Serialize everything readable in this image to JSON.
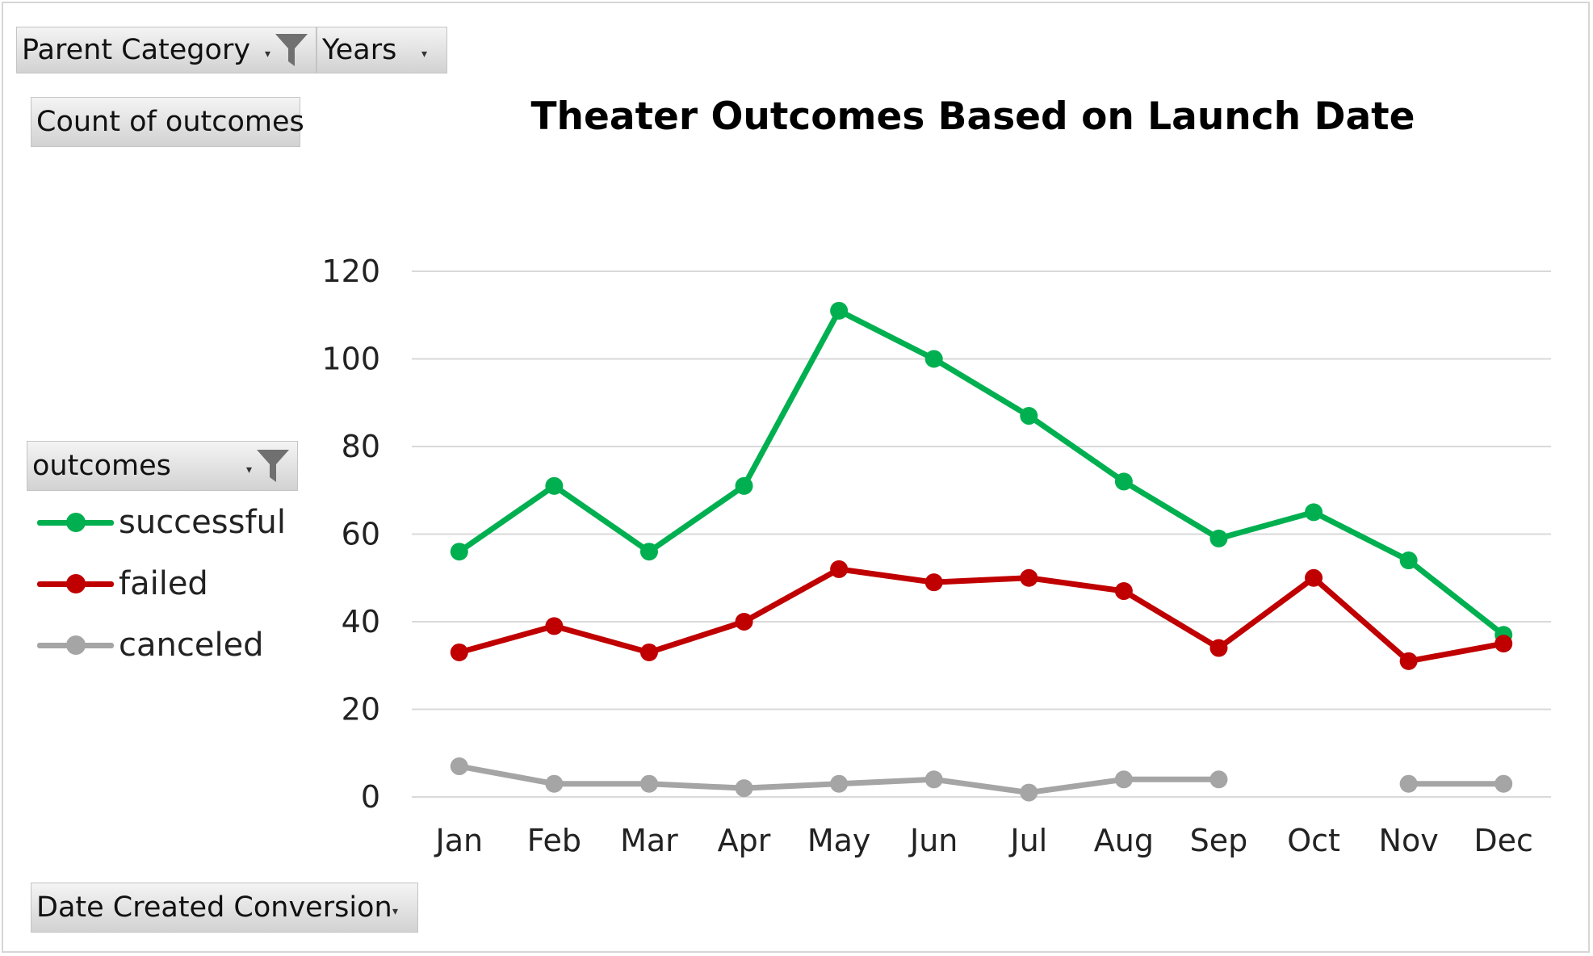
{
  "filters": {
    "parent_category": "Parent Category",
    "years": "Years",
    "count_of_outcomes": "Count of outcomes",
    "outcomes": "outcomes",
    "date_created": "Date Created Conversion"
  },
  "icons": {
    "filter": "funnel-filter-icon",
    "dropdown": "dropdown-arrow-icon"
  },
  "chart_data": {
    "type": "line",
    "title": "Theater Outcomes Based on Launch Date",
    "xlabel": "",
    "ylabel": "",
    "categories": [
      "Jan",
      "Feb",
      "Mar",
      "Apr",
      "May",
      "Jun",
      "Jul",
      "Aug",
      "Sep",
      "Oct",
      "Nov",
      "Dec"
    ],
    "ylim": [
      0,
      120
    ],
    "yticks": [
      0,
      20,
      40,
      60,
      80,
      100,
      120
    ],
    "grid": true,
    "legend": "left",
    "series": [
      {
        "name": "successful",
        "color": "#00b050",
        "values": [
          56,
          71,
          56,
          71,
          111,
          100,
          87,
          72,
          59,
          65,
          54,
          37
        ]
      },
      {
        "name": "failed",
        "color": "#c00000",
        "values": [
          33,
          39,
          33,
          40,
          52,
          49,
          50,
          47,
          34,
          50,
          31,
          35
        ]
      },
      {
        "name": "canceled",
        "color": "#a5a5a5",
        "values": [
          7,
          3,
          3,
          2,
          3,
          4,
          1,
          4,
          4,
          null,
          3,
          3
        ]
      }
    ]
  }
}
